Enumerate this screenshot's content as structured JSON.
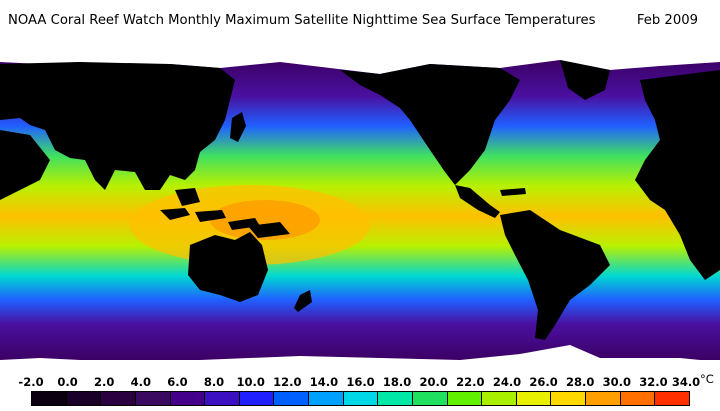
{
  "header": {
    "title": "NOAA Coral Reef Watch Monthly Maximum Satellite Nighttime Sea Surface Temperatures",
    "date": "Feb 2009"
  },
  "legend": {
    "ticks": [
      "-2.0",
      "0.0",
      "2.0",
      "4.0",
      "6.0",
      "8.0",
      "10.0",
      "12.0",
      "14.0",
      "16.0",
      "18.0",
      "20.0",
      "22.0",
      "24.0",
      "26.0",
      "28.0",
      "30.0",
      "32.0",
      "34.0"
    ],
    "unit": "°C",
    "colors": [
      "#0a0010",
      "#1a0028",
      "#2a0040",
      "#3a0a60",
      "#44008a",
      "#3a10c0",
      "#2020ff",
      "#0060ff",
      "#00a0ff",
      "#00d8e8",
      "#00e8a8",
      "#20e060",
      "#60f000",
      "#a8f000",
      "#e8f000",
      "#ffd800",
      "#ffa000",
      "#ff7000",
      "#ff3000"
    ]
  },
  "colors": {
    "land": "#000000",
    "ice": "#ffffff",
    "polar": "#3c0064",
    "cold": "#4a10a0",
    "cool": "#2060ff",
    "mild": "#00d8d0",
    "temperate": "#40e060",
    "warm": "#b8f000",
    "hot": "#ffc000",
    "hottest": "#ff9000"
  }
}
